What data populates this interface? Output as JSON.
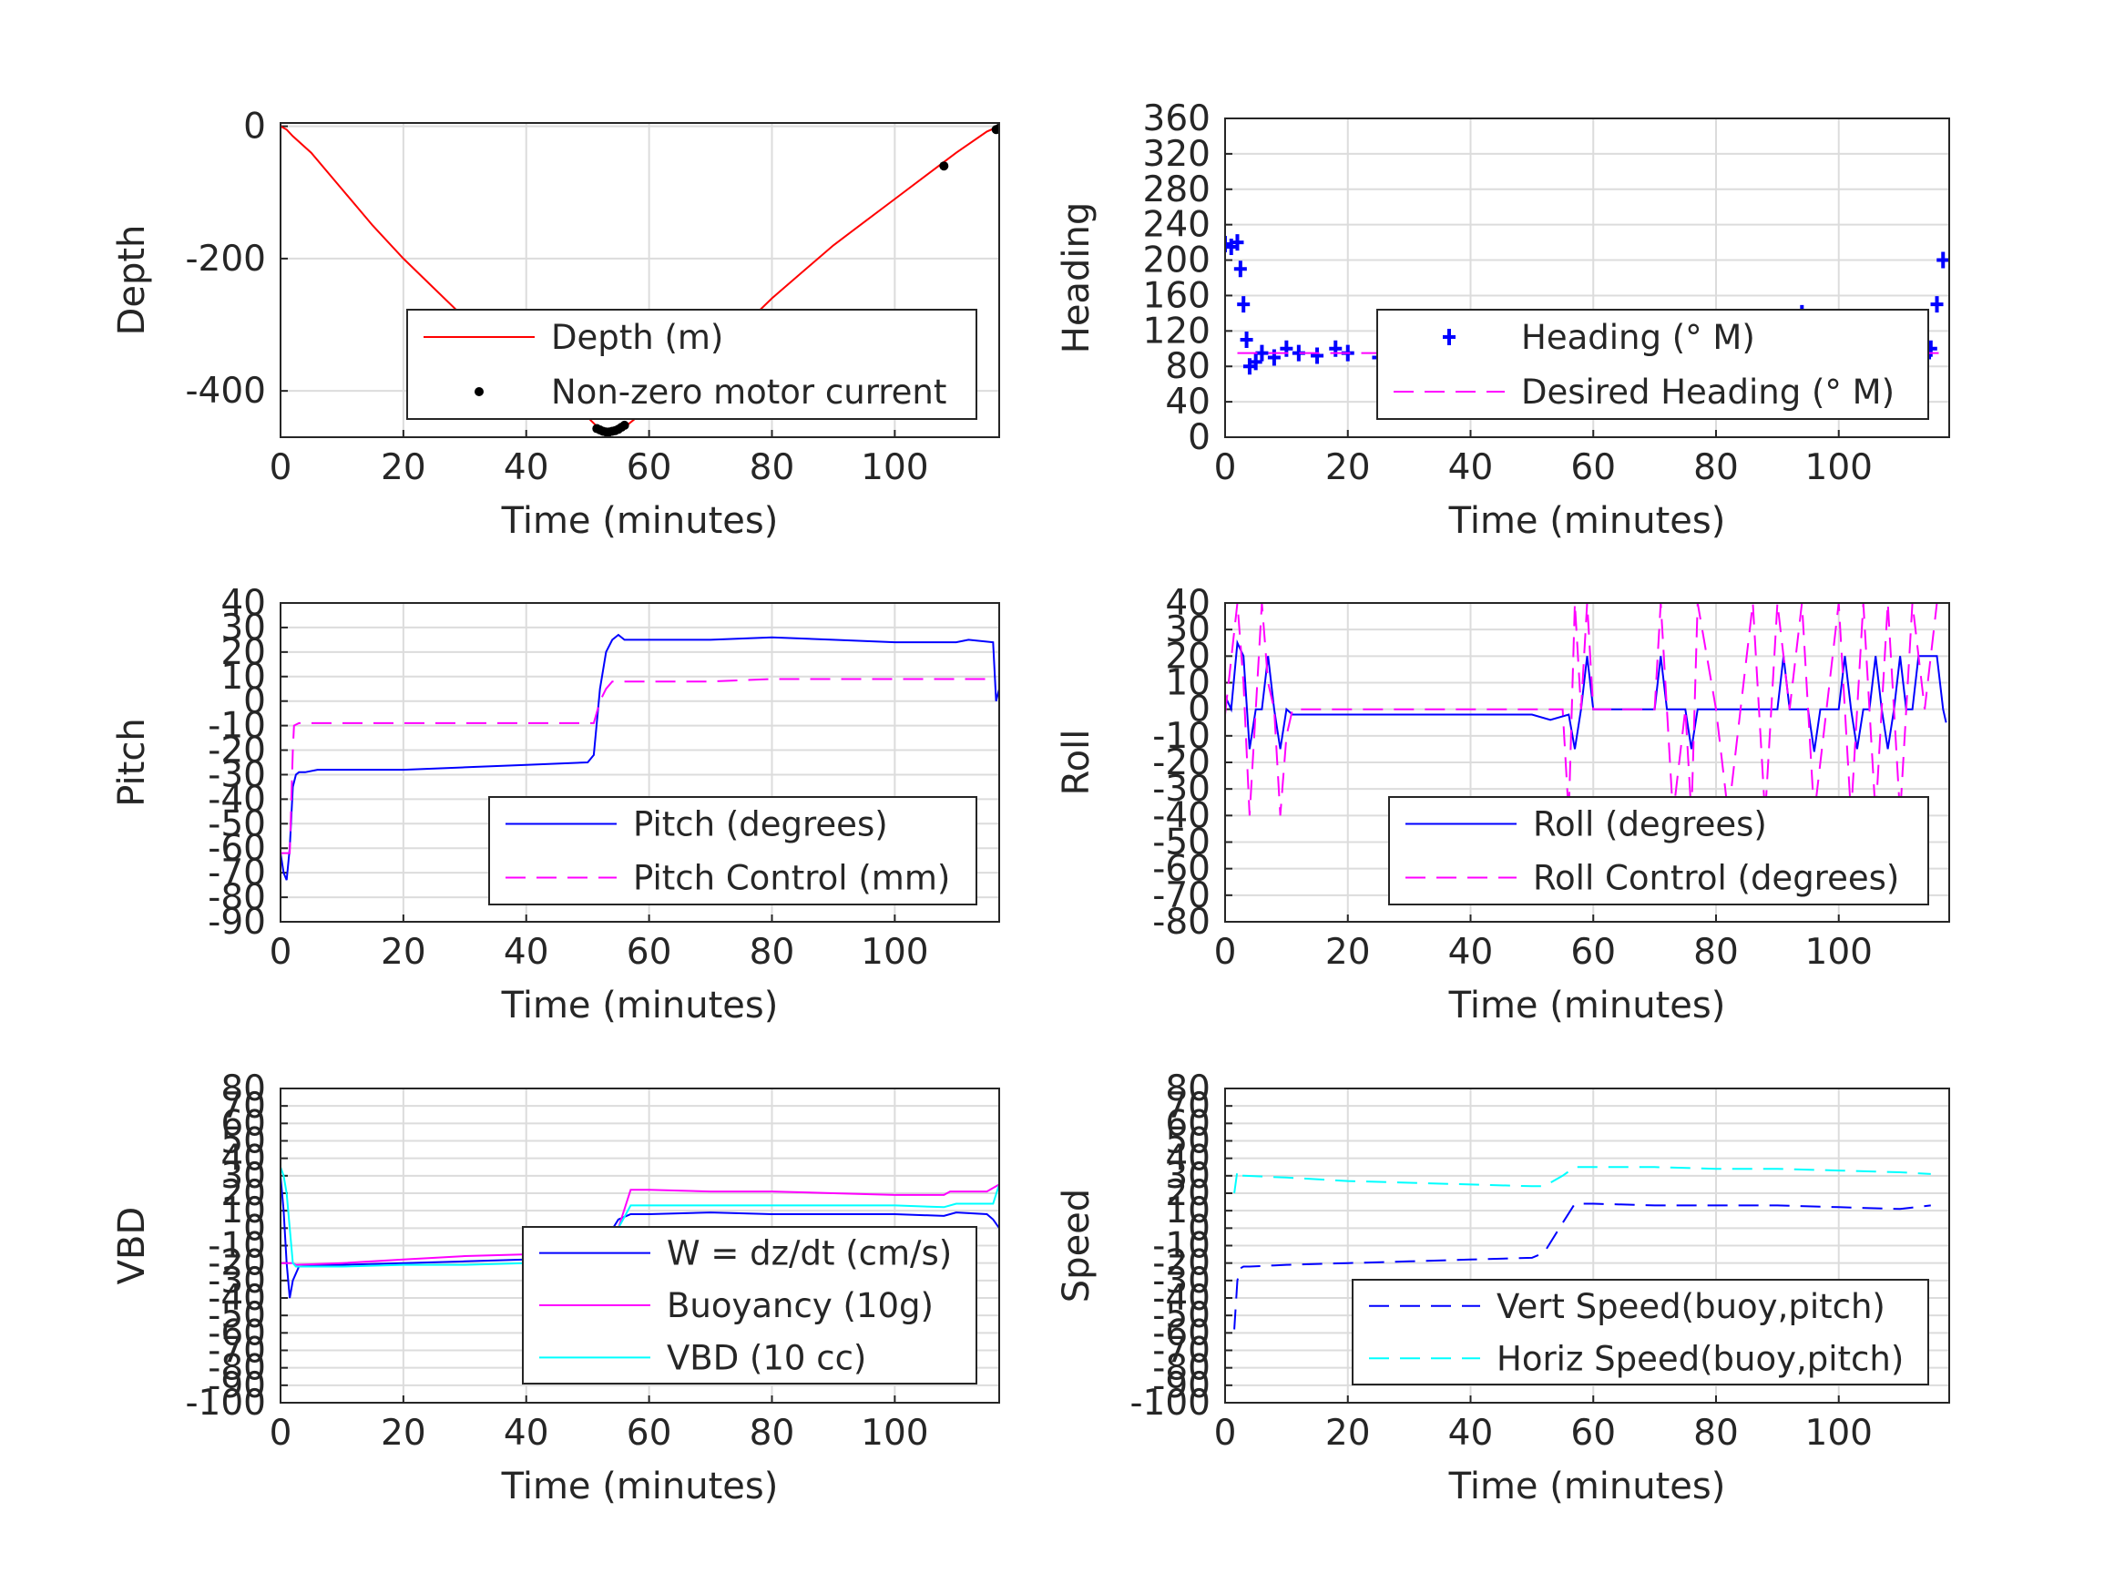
{
  "chart_data": [
    {
      "type": "line",
      "xlabel": "Time (minutes)",
      "ylabel": "Depth",
      "xlim": [
        0,
        117
      ],
      "ylim": [
        -470,
        5
      ],
      "xticks": [
        0,
        20,
        40,
        60,
        80,
        100
      ],
      "yticks": [
        0,
        -200,
        -400
      ],
      "grid": true,
      "legend": "bottom-right",
      "series": [
        {
          "name": "Depth (m)",
          "color": "#ff0000",
          "style": "solid",
          "x": [
            0,
            1,
            2,
            5,
            10,
            15,
            20,
            25,
            30,
            35,
            40,
            45,
            50,
            52,
            54,
            56,
            58,
            60,
            65,
            70,
            75,
            80,
            85,
            90,
            95,
            100,
            105,
            110,
            115,
            117
          ],
          "y": [
            0,
            -5,
            -15,
            -40,
            -95,
            -150,
            -200,
            -245,
            -290,
            -330,
            -365,
            -400,
            -440,
            -458,
            -462,
            -455,
            -440,
            -425,
            -385,
            -345,
            -305,
            -260,
            -220,
            -180,
            -145,
            -110,
            -75,
            -40,
            -8,
            0
          ]
        },
        {
          "name": "Non-zero motor current",
          "color": "#000000",
          "style": "markers",
          "x": [
            51.5,
            52,
            52.5,
            53,
            53.5,
            54,
            54.5,
            55,
            55.5,
            56,
            108,
            116.5,
            117
          ],
          "y": [
            -457,
            -459,
            -461,
            -462,
            -462,
            -461,
            -460,
            -458,
            -455,
            -452,
            -60,
            -5,
            -3
          ]
        }
      ]
    },
    {
      "type": "line",
      "xlabel": "Time (minutes)",
      "ylabel": "Heading",
      "xlim": [
        0,
        118
      ],
      "ylim": [
        0,
        360
      ],
      "xticks": [
        0,
        20,
        40,
        60,
        80,
        100
      ],
      "yticks": [
        0,
        40,
        80,
        120,
        160,
        200,
        240,
        280,
        320,
        360
      ],
      "grid": true,
      "legend": "center-right",
      "series": [
        {
          "name": "Heading (° M)",
          "color": "#0000ff",
          "style": "markers",
          "x": [
            0,
            1,
            2,
            2.5,
            3,
            3.5,
            4,
            5,
            6,
            8,
            10,
            12,
            15,
            18,
            20,
            25,
            30,
            35,
            40,
            45,
            50,
            52,
            54,
            55,
            56,
            58,
            60,
            62,
            64,
            66,
            68,
            70,
            72,
            74,
            76,
            78,
            80,
            82,
            84,
            86,
            88,
            90,
            92,
            94,
            96,
            98,
            100,
            102,
            104,
            106,
            108,
            110,
            112,
            114,
            115,
            116,
            117
          ],
          "y": [
            218,
            215,
            220,
            190,
            150,
            110,
            80,
            85,
            95,
            90,
            100,
            95,
            92,
            100,
            95,
            90,
            98,
            95,
            100,
            92,
            105,
            110,
            120,
            125,
            115,
            95,
            75,
            90,
            110,
            100,
            85,
            95,
            110,
            90,
            80,
            70,
            85,
            100,
            115,
            95,
            80,
            90,
            120,
            140,
            110,
            95,
            90,
            100,
            115,
            85,
            80,
            100,
            120,
            90,
            100,
            150,
            200
          ]
        },
        {
          "name": "Desired Heading (° M)",
          "color": "#ff00ff",
          "style": "dashed",
          "x": [
            2,
            117
          ],
          "y": [
            95,
            95
          ]
        }
      ]
    },
    {
      "type": "line",
      "xlabel": "Time (minutes)",
      "ylabel": "Pitch",
      "xlim": [
        0,
        117
      ],
      "ylim": [
        -90,
        40
      ],
      "xticks": [
        0,
        20,
        40,
        60,
        80,
        100
      ],
      "yticks": [
        -90,
        -80,
        -70,
        -60,
        -50,
        -40,
        -30,
        -20,
        -10,
        0,
        10,
        20,
        30,
        40
      ],
      "grid": true,
      "legend": "bottom-right",
      "series": [
        {
          "name": "Pitch (degrees)",
          "color": "#0000ff",
          "style": "solid",
          "x": [
            0,
            0.5,
            1,
            1.5,
            2,
            2.5,
            3,
            4,
            6,
            10,
            20,
            30,
            40,
            50,
            51,
            52,
            53,
            54,
            55,
            56,
            60,
            70,
            80,
            90,
            100,
            110,
            112,
            116,
            116.5,
            117
          ],
          "y": [
            -62,
            -70,
            -73,
            -60,
            -35,
            -30,
            -29,
            -29,
            -28,
            -28,
            -28,
            -27,
            -26,
            -25,
            -22,
            5,
            20,
            25,
            27,
            25,
            25,
            25,
            26,
            25,
            24,
            24,
            25,
            24,
            0,
            5
          ]
        },
        {
          "name": "Pitch Control (mm)",
          "color": "#ff00ff",
          "style": "dashed",
          "x": [
            0,
            1.5,
            2,
            2.2,
            3,
            10,
            20,
            30,
            40,
            51,
            52,
            53,
            54,
            60,
            70,
            80,
            90,
            100,
            110,
            116
          ],
          "y": [
            -62,
            -62,
            -20,
            -10,
            -9,
            -9,
            -9,
            -9,
            -9,
            -9,
            0,
            5,
            8,
            8,
            8,
            9,
            9,
            9,
            9,
            9
          ]
        }
      ]
    },
    {
      "type": "line",
      "xlabel": "Time (minutes)",
      "ylabel": "Roll",
      "xlim": [
        0,
        118
      ],
      "ylim": [
        -80,
        40
      ],
      "xticks": [
        0,
        20,
        40,
        60,
        80,
        100
      ],
      "yticks": [
        -80,
        -70,
        -60,
        -50,
        -40,
        -30,
        -20,
        -10,
        0,
        10,
        20,
        30,
        40
      ],
      "grid": true,
      "legend": "bottom-right",
      "series": [
        {
          "name": "Roll (degrees)",
          "color": "#0000ff",
          "style": "solid",
          "x": [
            0,
            1,
            2,
            3,
            4,
            5,
            6,
            7,
            8,
            9,
            10,
            11,
            12,
            20,
            30,
            40,
            50,
            53,
            56,
            57,
            58,
            59,
            60,
            70,
            71,
            72,
            73,
            75,
            76,
            77,
            78,
            80,
            90,
            91,
            92,
            95,
            96,
            97,
            98,
            100,
            101,
            102,
            103,
            104,
            105,
            106,
            107,
            108,
            109,
            110,
            111,
            112,
            113,
            116,
            117,
            117.5
          ],
          "y": [
            5,
            0,
            25,
            20,
            -15,
            0,
            0,
            20,
            0,
            -15,
            0,
            -2,
            -2,
            -2,
            -2,
            -2,
            -2,
            -4,
            -2,
            -15,
            0,
            20,
            0,
            0,
            20,
            0,
            0,
            0,
            -15,
            0,
            0,
            0,
            0,
            20,
            0,
            0,
            -16,
            0,
            0,
            0,
            20,
            0,
            -15,
            0,
            0,
            20,
            0,
            -15,
            0,
            20,
            0,
            0,
            20,
            20,
            0,
            -5
          ]
        },
        {
          "name": "Roll Control (degrees)",
          "color": "#ff00ff",
          "style": "dashed",
          "x": [
            0,
            2,
            3,
            4,
            5,
            6,
            7,
            8,
            9,
            10,
            11,
            12,
            20,
            30,
            40,
            50,
            55,
            56,
            57,
            58,
            59,
            60,
            70,
            71,
            72,
            73,
            75,
            76,
            77,
            80,
            82,
            84,
            86,
            88,
            90,
            92,
            94,
            96,
            98,
            100,
            102,
            104,
            106,
            108,
            110,
            112,
            114,
            116
          ],
          "y": [
            -2,
            40,
            10,
            -40,
            0,
            40,
            10,
            0,
            -40,
            -10,
            0,
            0,
            0,
            0,
            0,
            0,
            0,
            -40,
            40,
            0,
            40,
            0,
            0,
            40,
            0,
            -40,
            0,
            -40,
            40,
            0,
            -40,
            0,
            40,
            -40,
            40,
            0,
            40,
            -40,
            0,
            40,
            -40,
            40,
            -40,
            40,
            -40,
            40,
            0,
            40
          ]
        }
      ]
    },
    {
      "type": "line",
      "xlabel": "Time (minutes)",
      "ylabel": "VBD",
      "xlim": [
        0,
        117
      ],
      "ylim": [
        -100,
        80
      ],
      "xticks": [
        0,
        20,
        40,
        60,
        80,
        100
      ],
      "yticks": [
        -100,
        -90,
        -80,
        -70,
        -60,
        -50,
        -40,
        -30,
        -20,
        -10,
        0,
        10,
        20,
        30,
        40,
        50,
        60,
        70,
        80
      ],
      "grid": true,
      "legend": "bottom-right",
      "series": [
        {
          "name": "W = dz/dt (cm/s)",
          "color": "#0000ff",
          "style": "solid",
          "x": [
            0,
            0.5,
            1,
            1.5,
            2,
            3,
            5,
            10,
            20,
            30,
            40,
            50,
            52,
            55,
            57,
            60,
            70,
            80,
            90,
            100,
            108,
            110,
            115,
            116,
            117
          ],
          "y": [
            30,
            10,
            -20,
            -40,
            -30,
            -22,
            -21,
            -21,
            -20,
            -19,
            -18,
            -17,
            -12,
            5,
            8,
            8,
            9,
            8,
            8,
            8,
            7,
            9,
            8,
            5,
            0
          ]
        },
        {
          "name": "Buoyancy (10g)",
          "color": "#ff00ff",
          "style": "solid",
          "x": [
            0,
            1,
            2,
            2.5,
            10,
            20,
            30,
            40,
            50,
            52,
            55,
            57,
            60,
            70,
            80,
            90,
            100,
            108,
            109,
            115,
            117
          ],
          "y": [
            -20,
            -20,
            -20,
            -21,
            -20,
            -18,
            -16,
            -15,
            -14,
            -13,
            0,
            22,
            22,
            21,
            21,
            20,
            19,
            19,
            21,
            21,
            25
          ]
        },
        {
          "name": "VBD (10 cc)",
          "color": "#00ffff",
          "style": "solid",
          "x": [
            0,
            0.5,
            1,
            1.5,
            2,
            2.5,
            3,
            10,
            20,
            30,
            40,
            50,
            52,
            55,
            57,
            60,
            70,
            80,
            90,
            100,
            108,
            110,
            115,
            116,
            117
          ],
          "y": [
            35,
            30,
            20,
            0,
            -20,
            -22,
            -22,
            -22,
            -21,
            -21,
            -20,
            -19,
            -17,
            0,
            13,
            13,
            13,
            13,
            13,
            13,
            12,
            14,
            14,
            14,
            25
          ]
        }
      ]
    },
    {
      "type": "line",
      "xlabel": "Time (minutes)",
      "ylabel": "Speed",
      "xlim": [
        0,
        118
      ],
      "ylim": [
        -100,
        80
      ],
      "xticks": [
        0,
        20,
        40,
        60,
        80,
        100
      ],
      "yticks": [
        -100,
        -90,
        -80,
        -70,
        -60,
        -50,
        -40,
        -30,
        -20,
        -10,
        0,
        10,
        20,
        30,
        40,
        50,
        60,
        70,
        80
      ],
      "grid": true,
      "legend": "bottom-right",
      "series": [
        {
          "name": "Vert Speed(buoy,pitch)",
          "color": "#0000ff",
          "style": "dashed",
          "x": [
            1.5,
            2,
            2.5,
            3,
            4,
            10,
            20,
            30,
            40,
            50,
            52,
            55,
            57,
            60,
            70,
            80,
            90,
            100,
            110,
            115
          ],
          "y": [
            -58,
            -30,
            -23,
            -22,
            -22,
            -21,
            -20,
            -19,
            -18,
            -17,
            -14,
            3,
            14,
            14,
            13,
            13,
            13,
            12,
            11,
            13
          ]
        },
        {
          "name": "Horiz Speed(buoy,pitch)",
          "color": "#00ffff",
          "style": "dashed",
          "x": [
            1.5,
            2,
            2.5,
            3,
            10,
            20,
            30,
            40,
            50,
            52,
            55,
            57,
            60,
            70,
            80,
            90,
            100,
            110,
            115
          ],
          "y": [
            20,
            33,
            30,
            30,
            29,
            27,
            26,
            25,
            24,
            24,
            30,
            35,
            35,
            35,
            34,
            34,
            33,
            32,
            31
          ]
        }
      ]
    }
  ]
}
